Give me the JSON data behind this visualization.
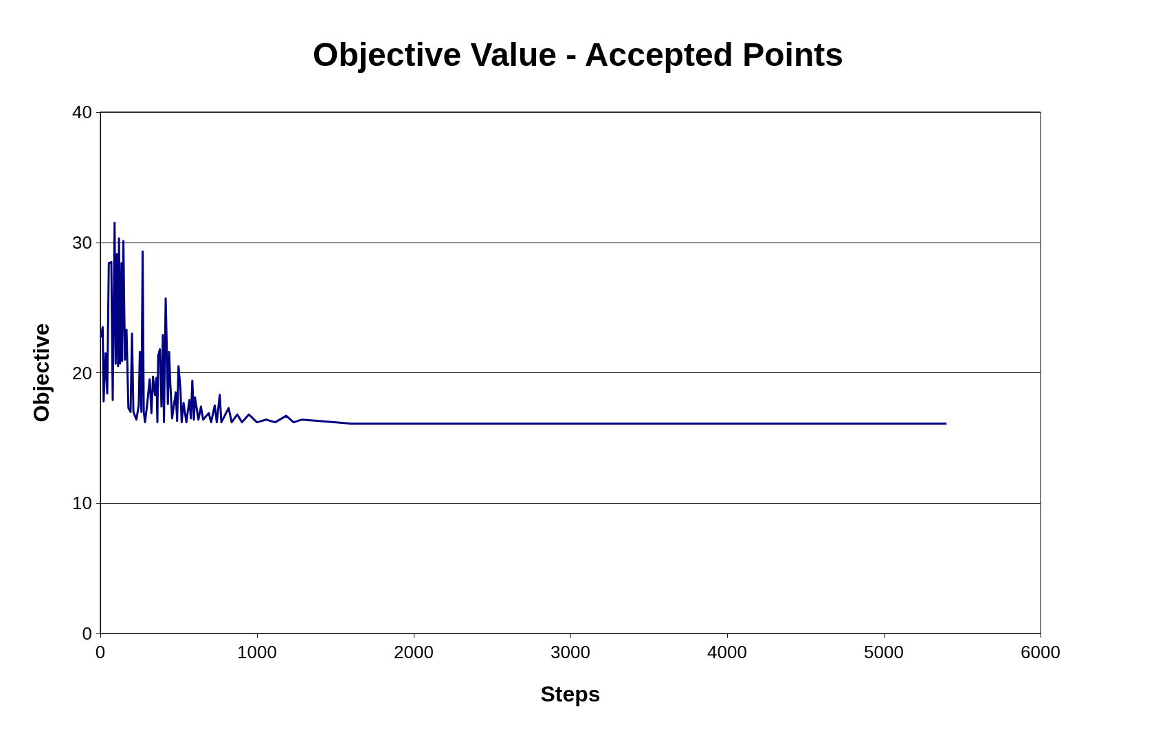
{
  "chart_data": {
    "type": "line",
    "title": "Objective Value - Accepted Points",
    "xlabel": "Steps",
    "ylabel": "Objective",
    "xlim": [
      0,
      6000
    ],
    "xticks": [
      0,
      1000,
      2000,
      3000,
      4000,
      5000,
      6000
    ],
    "ylim": [
      0,
      40
    ],
    "yticks": [
      0,
      10,
      20,
      30,
      40
    ],
    "grid": "y",
    "marker": "none",
    "line_style": "solid",
    "series": [
      {
        "color": "#000080",
        "x": [
          3,
          15,
          21,
          33,
          44,
          54,
          70,
          79,
          91,
          98,
          106,
          113,
          119,
          126,
          135,
          139,
          147,
          157,
          167,
          179,
          193,
          202,
          211,
          230,
          245,
          252,
          262,
          270,
          277,
          285,
          299,
          315,
          326,
          336,
          348,
          358,
          364,
          369,
          380,
          390,
          399,
          406,
          417,
          424,
          431,
          439,
          446,
          458,
          481,
          490,
          499,
          511,
          519,
          531,
          549,
          568,
          578,
          587,
          597,
          604,
          626,
          642,
          656,
          692,
          707,
          730,
          743,
          762,
          772,
          819,
          838,
          874,
          904,
          948,
          999,
          1058,
          1116,
          1186,
          1233,
          1284,
          1400,
          1600,
          1800,
          2200,
          3000,
          4000,
          5000,
          5400
        ],
        "values": [
          22.7,
          23.5,
          17.8,
          21.5,
          18.4,
          28.4,
          28.5,
          17.9,
          31.5,
          20.7,
          29.1,
          20.5,
          30.3,
          20.7,
          28.4,
          20.9,
          30.1,
          21.0,
          23.3,
          17.3,
          17.0,
          23.0,
          17.0,
          16.4,
          17.5,
          21.6,
          17.0,
          29.3,
          17.0,
          16.2,
          17.6,
          19.5,
          16.9,
          19.7,
          18.3,
          19.6,
          16.2,
          21.3,
          21.8,
          17.4,
          22.9,
          16.2,
          25.7,
          21.9,
          17.6,
          21.6,
          19.3,
          16.5,
          18.5,
          16.3,
          20.5,
          18.8,
          16.2,
          17.7,
          16.2,
          17.9,
          16.5,
          19.4,
          16.4,
          18.1,
          16.4,
          17.4,
          16.4,
          16.9,
          16.2,
          17.5,
          16.2,
          18.3,
          16.2,
          17.3,
          16.2,
          16.8,
          16.2,
          16.8,
          16.2,
          16.4,
          16.2,
          16.7,
          16.2,
          16.4,
          16.3,
          16.1,
          16.1,
          16.1,
          16.1,
          16.1,
          16.1,
          16.1
        ]
      }
    ]
  }
}
